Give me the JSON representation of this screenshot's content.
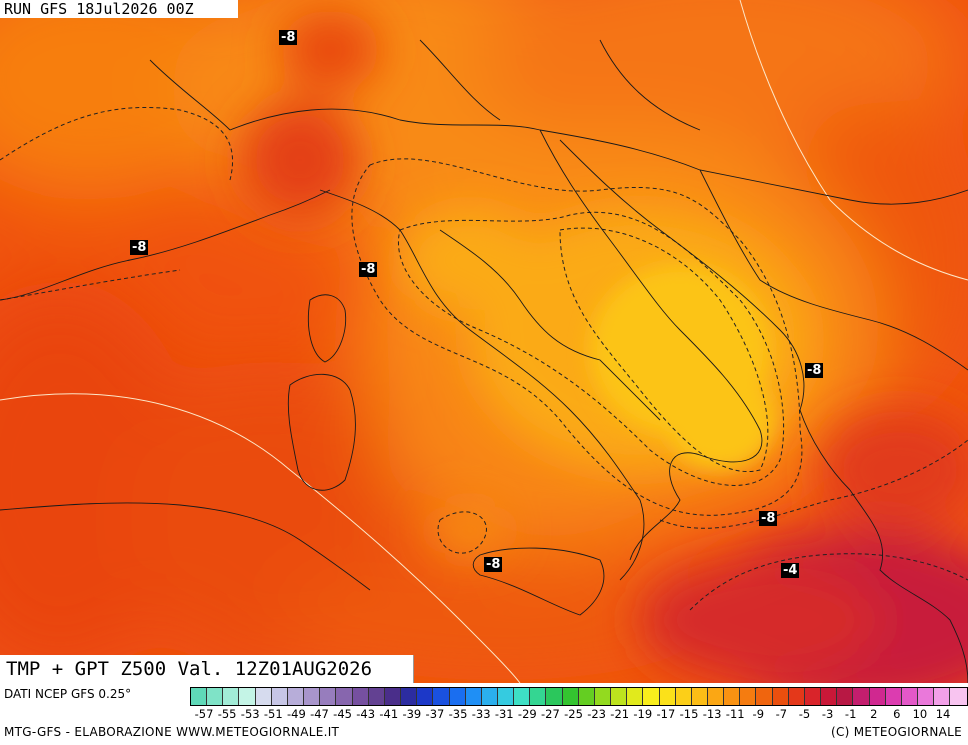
{
  "header": {
    "run_label": "RUN GFS 18Jul2026 00Z"
  },
  "map": {
    "title": "TMP + GPT Z500 Val. 12Z01AUG2026",
    "contour_labels": [
      "-8",
      "-8",
      "-8",
      "-8",
      "-8",
      "-8",
      "-4"
    ]
  },
  "footer": {
    "data_source": "DATI NCEP GFS 0.25°",
    "credit_left": "MTG-GFS - ELABORAZIONE WWW.METEOGIORNALE.IT",
    "credit_right": "(C) METEOGIORNALE"
  },
  "legend": {
    "colors": [
      "#5fd9b8",
      "#7fe3c7",
      "#a2ecd7",
      "#c4f4e6",
      "#d6dbee",
      "#c7c6e6",
      "#b7add9",
      "#a895cb",
      "#977dbd",
      "#8766ae",
      "#7650a0",
      "#634192",
      "#4a2e8a",
      "#2c2ca0",
      "#1c38c8",
      "#1a51e0",
      "#1a6ef0",
      "#1f8ff5",
      "#2bafed",
      "#35cbe0",
      "#3ee0c5",
      "#34d692",
      "#2bc75c",
      "#34c430",
      "#64ce22",
      "#93da1f",
      "#bde31e",
      "#e1ea1c",
      "#f9ee1c",
      "#fbe11a",
      "#fccf18",
      "#fcbd16",
      "#fba714",
      "#f99212",
      "#f57c10",
      "#f0650e",
      "#ea4f0e",
      "#e4381a",
      "#d9242a",
      "#c91838",
      "#b81844",
      "#c41e6e",
      "#d02890",
      "#dc3cb0",
      "#e358c8",
      "#ea78da",
      "#f2a0e8",
      "#f8c4f0"
    ],
    "tick_labels": [
      "-57",
      "-55",
      "-53",
      "-51",
      "-49",
      "-47",
      "-45",
      "-43",
      "-41",
      "-39",
      "-37",
      "-35",
      "-33",
      "-31",
      "-29",
      "-27",
      "-25",
      "-23",
      "-21",
      "-19",
      "-17",
      "-15",
      "-13",
      "-11",
      "-9",
      "-7",
      "-5",
      "-3",
      "-1",
      "2",
      "6",
      "10",
      "14"
    ]
  }
}
